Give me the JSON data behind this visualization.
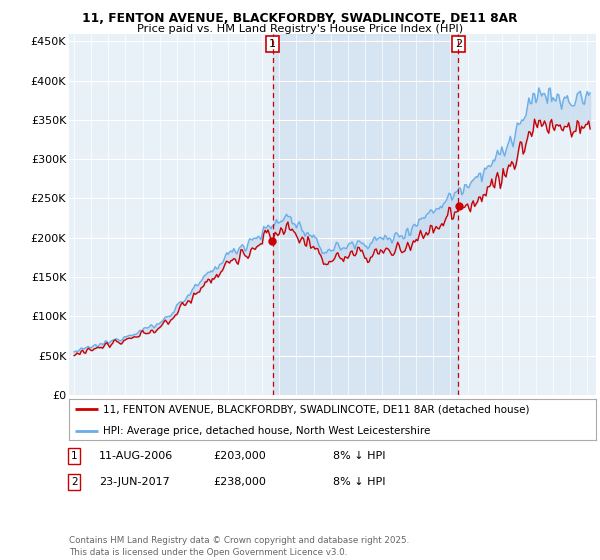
{
  "title_line1": "11, FENTON AVENUE, BLACKFORDBY, SWADLINCOTE, DE11 8AR",
  "title_line2": "Price paid vs. HM Land Registry's House Price Index (HPI)",
  "ylim": [
    0,
    460000
  ],
  "yticks": [
    0,
    50000,
    100000,
    150000,
    200000,
    250000,
    300000,
    350000,
    400000,
    450000
  ],
  "ytick_labels": [
    "£0",
    "£50K",
    "£100K",
    "£150K",
    "£200K",
    "£250K",
    "£300K",
    "£350K",
    "£400K",
    "£450K"
  ],
  "xlim_start": 1994.7,
  "xlim_end": 2025.5,
  "hpi_color": "#6aaee8",
  "hpi_fill_color": "#c5daef",
  "price_color": "#cc0000",
  "marker1_x": 2006.6,
  "marker2_x": 2017.47,
  "legend_line1": "11, FENTON AVENUE, BLACKFORDBY, SWADLINCOTE, DE11 8AR (detached house)",
  "legend_line2": "HPI: Average price, detached house, North West Leicestershire",
  "note1_label": "1",
  "note1_date": "11-AUG-2006",
  "note1_price": "£203,000",
  "note1_change": "8% ↓ HPI",
  "note2_label": "2",
  "note2_date": "23-JUN-2017",
  "note2_price": "£238,000",
  "note2_change": "8% ↓ HPI",
  "footer": "Contains HM Land Registry data © Crown copyright and database right 2025.\nThis data is licensed under the Open Government Licence v3.0.",
  "bg_color": "#e8f0f8",
  "shade_color": "#cddcee",
  "grid_color": "#ffffff"
}
